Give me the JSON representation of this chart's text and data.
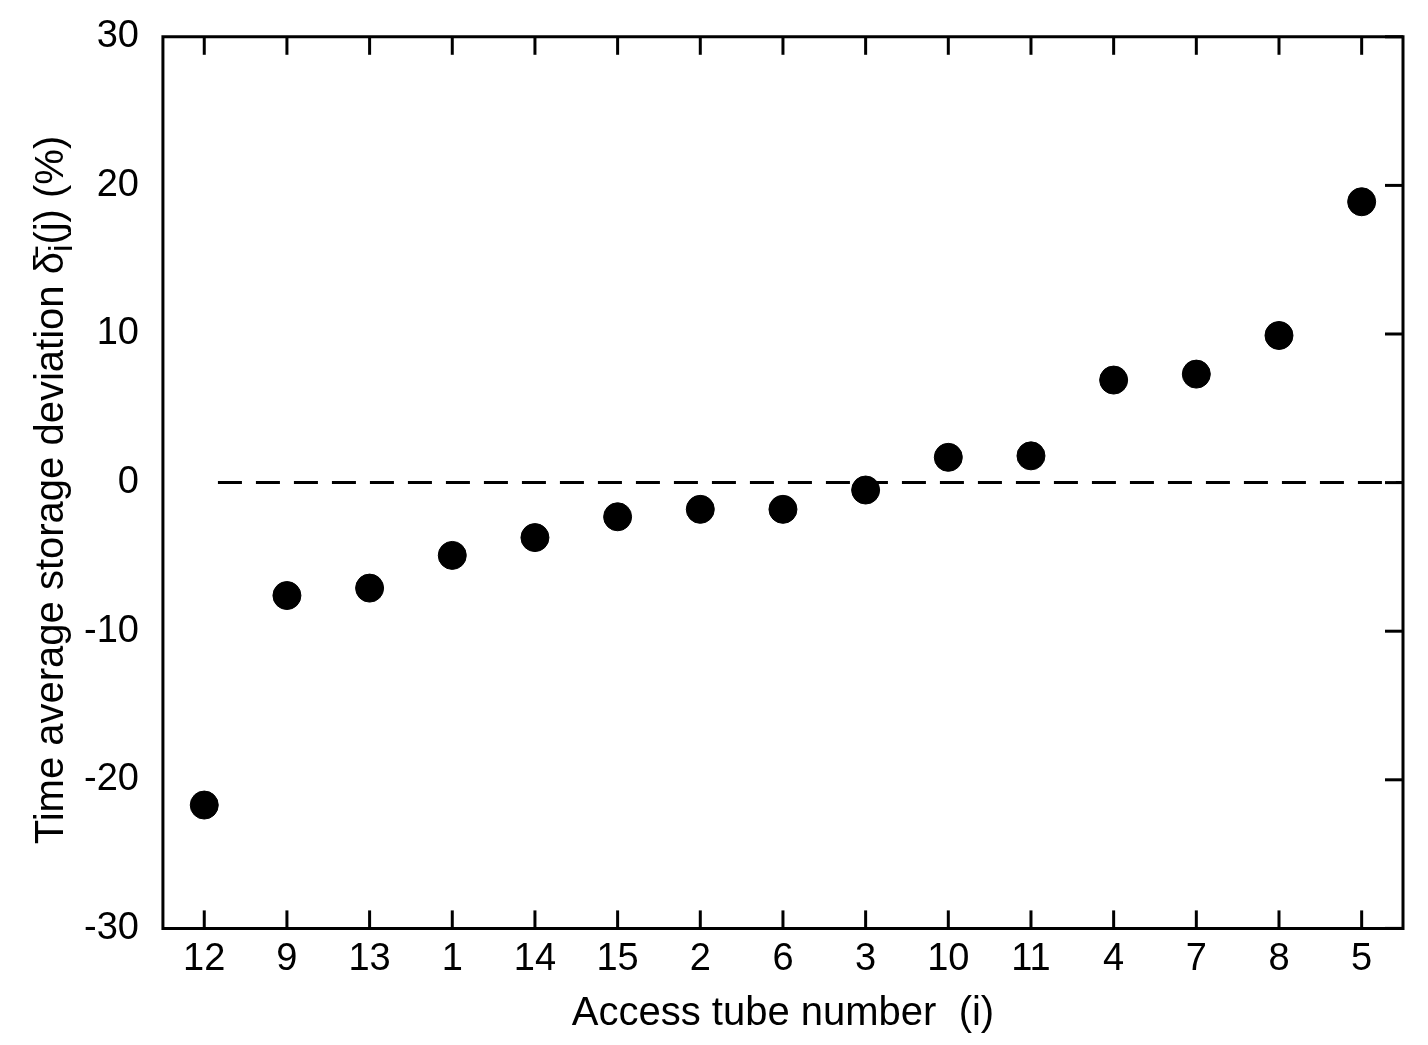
{
  "chart_data": {
    "type": "scatter",
    "xlabel": "Access tube number  (i)",
    "ylabel": "Time average storage deviation δ̄$_{i}$(j)  (%)",
    "categories": [
      "12",
      "9",
      "13",
      "1",
      "14",
      "15",
      "2",
      "6",
      "3",
      "10",
      "11",
      "4",
      "7",
      "8",
      "5"
    ],
    "series": [
      {
        "color": "#000000",
        "values": [
          -21.7,
          -7.6,
          -7.1,
          -4.9,
          -3.7,
          -2.3,
          -1.8,
          -1.8,
          -0.5,
          1.7,
          1.8,
          6.9,
          7.3,
          9.9,
          18.9
        ]
      }
    ],
    "ylim": [
      -30,
      30
    ],
    "yticks": [
      -30,
      -20,
      -10,
      0,
      10,
      20,
      30
    ],
    "grid": false,
    "legend": false,
    "marker": "circle",
    "ref_lines": [
      {
        "axis": "y",
        "value": 0,
        "color": "#000000",
        "line_style": "dashed"
      }
    ]
  }
}
